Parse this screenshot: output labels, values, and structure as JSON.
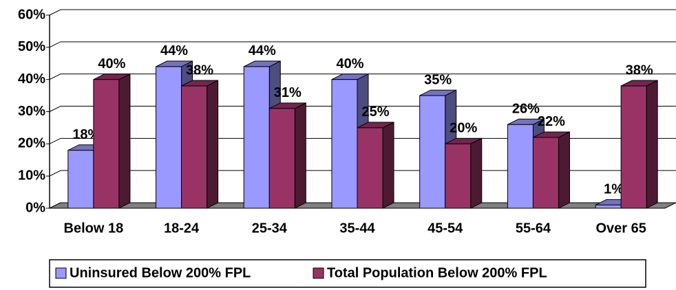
{
  "chart_data": {
    "type": "bar3d",
    "categories": [
      "Below 18",
      "18-24",
      "25-34",
      "35-44",
      "45-54",
      "55-64",
      "Over 65"
    ],
    "series": [
      {
        "name": "Uninsured Below 200% FPL",
        "color": "#9999ff",
        "values": [
          18,
          44,
          44,
          40,
          35,
          26,
          1
        ],
        "value_labels": [
          "18%",
          "44%",
          "44%",
          "40%",
          "35%",
          "26%",
          "1%"
        ]
      },
      {
        "name": "Total Population Below 200% FPL",
        "color": "#993366",
        "values": [
          40,
          38,
          31,
          25,
          20,
          22,
          38
        ],
        "value_labels": [
          "40%",
          "38%",
          "31%",
          "25%",
          "20%",
          "22%",
          "38%"
        ]
      }
    ],
    "ylim": [
      0,
      60
    ],
    "yticks": [
      {
        "value": 0,
        "label": "0%"
      },
      {
        "value": 10,
        "label": "10%"
      },
      {
        "value": 20,
        "label": "20%"
      },
      {
        "value": 30,
        "label": "30%"
      },
      {
        "value": 40,
        "label": "40%"
      },
      {
        "value": 50,
        "label": "50%"
      },
      {
        "value": 60,
        "label": "60%"
      }
    ],
    "grid": true
  }
}
